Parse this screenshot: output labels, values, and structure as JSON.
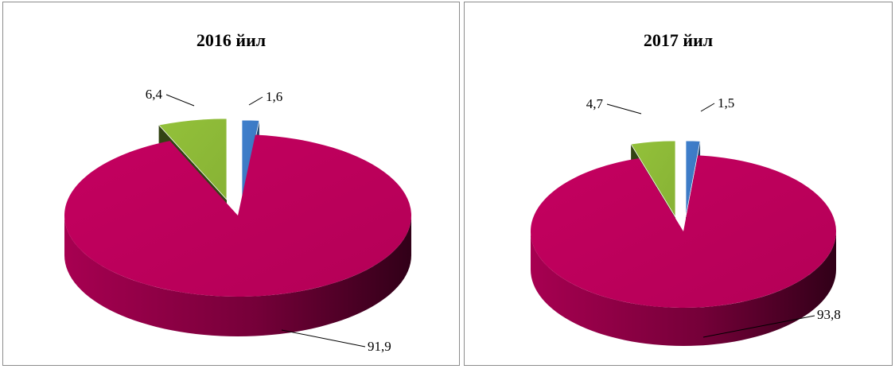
{
  "chart_data": [
    {
      "type": "pie",
      "title": "2016 йил",
      "categories": [
        "",
        "",
        ""
      ],
      "values": [
        1.6,
        91.9,
        6.4
      ],
      "value_labels": [
        "1,6",
        "91,9",
        "6,4"
      ],
      "colors": [
        "#3F7FCC",
        "#C4005F",
        "#93C13A"
      ],
      "style": "3d-exploded",
      "legend": "none"
    },
    {
      "type": "pie",
      "title": "2017 йил",
      "categories": [
        "",
        "",
        ""
      ],
      "values": [
        1.5,
        93.8,
        4.7
      ],
      "value_labels": [
        "1,5",
        "93,8",
        "4,7"
      ],
      "colors": [
        "#3F7FCC",
        "#C4005F",
        "#93C13A"
      ],
      "style": "3d-exploded",
      "legend": "none"
    }
  ]
}
